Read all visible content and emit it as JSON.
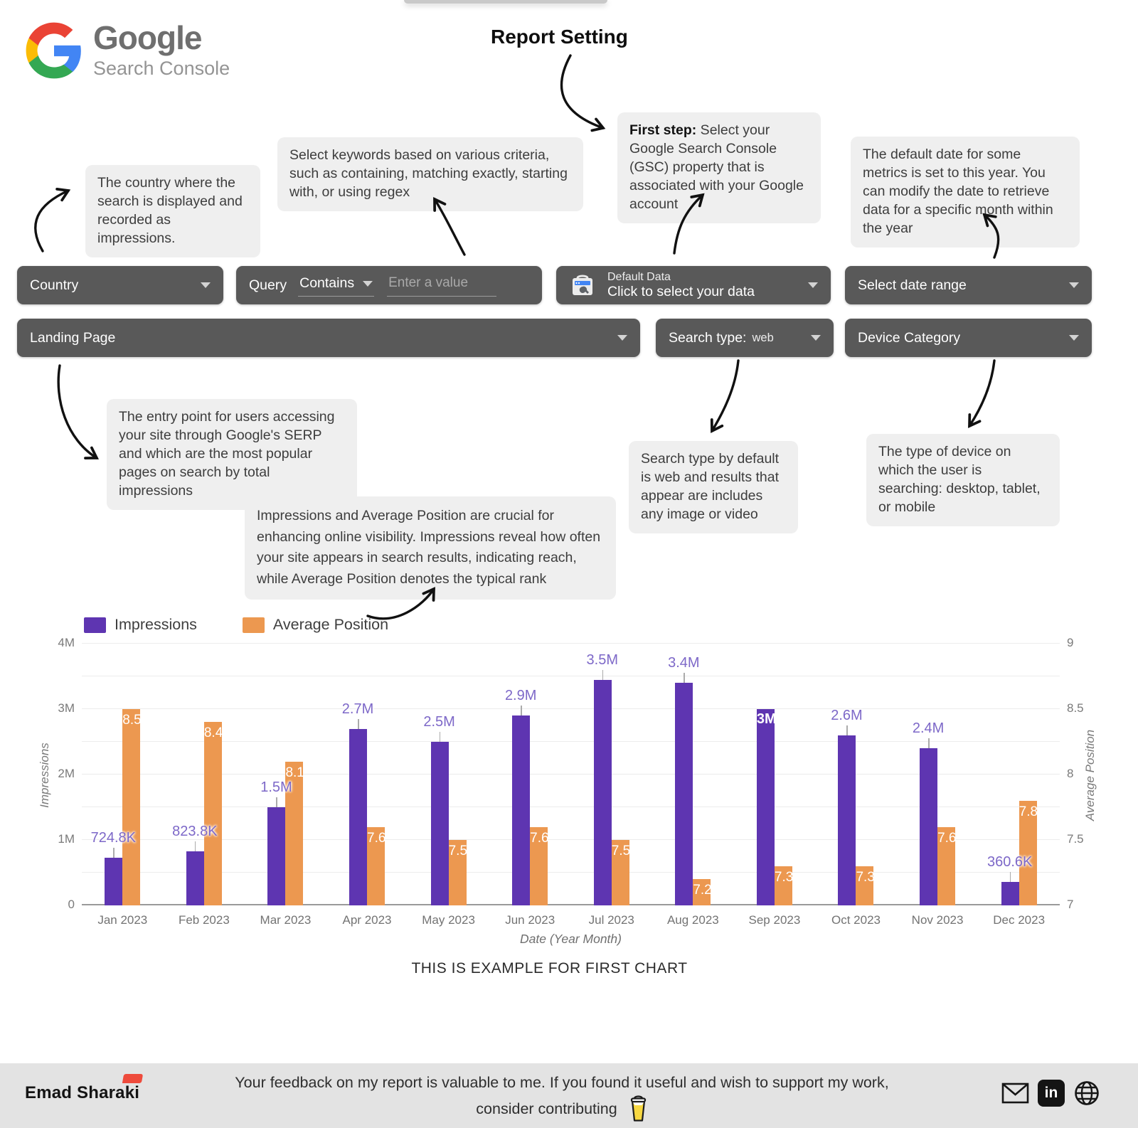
{
  "header": {
    "brand_name": "Google",
    "brand_subtitle": "Search Console",
    "title": "Report Setting"
  },
  "notes": {
    "country": "The country where the search is displayed and recorded as impressions.",
    "query": "Select keywords based on various criteria, such as containing, matching exactly, starting with, or using regex",
    "first_step_prefix": "First step:",
    "first_step_text": " Select your Google Search Console (GSC) property that is associated with your Google account",
    "date": "The default date for some metrics is set to this year. You can modify the date to retrieve data for a specific month within the year",
    "landing": "The entry point for users accessing your site through Google's SERP and which are the most popular pages on search by total impressions",
    "search_type": "Search type by default is web and results that appear are includes any image or video",
    "device": "The type of device on which the user is searching: desktop, tablet, or mobile",
    "metrics": "Impressions and Average Position are crucial for enhancing online visibility. Impressions reveal how often your site appears in search results, indicating reach, while Average Position denotes the typical rank"
  },
  "filters": {
    "country": "Country",
    "query_label": "Query",
    "query_operator": "Contains",
    "query_placeholder": "Enter a value",
    "default_data_title": "Default Data",
    "default_data_subtitle": "Click to select your data",
    "date_range": "Select date range",
    "landing_page": "Landing Page",
    "search_type_label": "Search type:",
    "search_type_value": "web",
    "device_category": "Device Category"
  },
  "chart_data": {
    "type": "bar",
    "categories": [
      "Jan 2023",
      "Feb 2023",
      "Mar 2023",
      "Apr 2023",
      "May 2023",
      "Jun 2023",
      "Jul 2023",
      "Aug 2023",
      "Sep 2023",
      "Oct 2023",
      "Nov 2023",
      "Dec 2023"
    ],
    "series": [
      {
        "name": "Impressions",
        "axis": "left",
        "color": "#5E35B1",
        "values": [
          724800,
          823800,
          1500000,
          2700000,
          2500000,
          2900000,
          3450000,
          3400000,
          3000000,
          2600000,
          2400000,
          360600
        ],
        "labels": [
          "724.8K",
          "823.8K",
          "1.5M",
          "2.7M",
          "2.5M",
          "2.9M",
          "3.5M",
          "3.4M",
          "3M",
          "2.6M",
          "2.4M",
          "360.6K"
        ],
        "label_inside": [
          false,
          false,
          false,
          false,
          false,
          false,
          false,
          false,
          true,
          false,
          false,
          false
        ]
      },
      {
        "name": "Average Position",
        "axis": "right",
        "color": "#EC9850",
        "values": [
          8.5,
          8.4,
          8.1,
          7.6,
          7.5,
          7.6,
          7.5,
          7.2,
          7.3,
          7.3,
          7.6,
          7.8
        ],
        "labels": [
          "8.5",
          "8.4",
          "8.1",
          "7.6",
          "7.5",
          "7.6",
          "7.5",
          "7.2",
          "7.3",
          "7.3",
          "7.6",
          "7.8"
        ]
      }
    ],
    "xlabel": "Date (Year Month)",
    "ylabel_left": "Impressions",
    "ylabel_right": "Average Position",
    "ylim_left": [
      0,
      4000000
    ],
    "ylim_right": [
      7,
      9
    ],
    "yticks_left": [
      "4M",
      "3M",
      "2M",
      "1M",
      "0"
    ],
    "yticks_right": [
      "9",
      "8.5",
      "8",
      "7.5",
      "7"
    ],
    "grid": true,
    "legend_position": "top-left"
  },
  "caption": "THIS IS EXAMPLE FOR FIRST CHART",
  "footer": {
    "logo": "Emad Sharaki",
    "message": "Your feedback on my report is valuable to me. If you found it useful and wish to support my work, consider contributing",
    "icons": [
      "mail-icon",
      "linkedin-icon",
      "globe-icon"
    ]
  },
  "colors": {
    "impressions": "#5E35B1",
    "impressions_label": "#7D68C8",
    "avg_position": "#EC9850",
    "button_bg": "#595959",
    "note_bg": "#EFEFEF",
    "footer_bg": "#E3E3E3",
    "accent_red": "#EE4B3C"
  }
}
